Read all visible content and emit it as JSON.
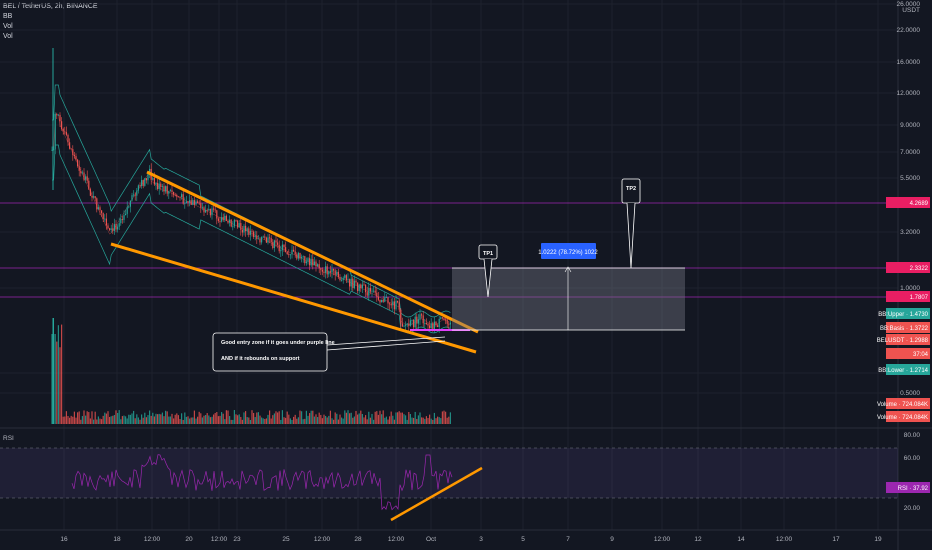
{
  "header": {
    "symbol_line": "BEL / TetherUS, 2h, BINANCE",
    "indicators": [
      "BB",
      "Vol",
      "Vol"
    ]
  },
  "price_axis": {
    "unit": "USDT",
    "ticks": [
      "26.0000",
      "22.0000",
      "16.0000",
      "12.0000",
      "9.0000",
      "7.0000",
      "5.5000",
      "3.2000",
      "1.0000",
      "0.7500",
      "0.5000"
    ]
  },
  "rsi_axis": {
    "ticks": [
      "80.00",
      "60.00",
      "20.00"
    ]
  },
  "time_axis": {
    "ticks": [
      "16",
      "18",
      "12:00",
      "20",
      "12:00",
      "23",
      "25",
      "12:00",
      "28",
      "12:00",
      "Oct",
      "3",
      "5",
      "7",
      "9",
      "12:00",
      "12",
      "14",
      "12:00",
      "17",
      "19"
    ]
  },
  "colors": {
    "background": "#131722",
    "up": "#26a69a",
    "down": "#ef5350",
    "magenta": "#e040fb",
    "purple_line": "#9c27b0",
    "orange": "#ff9800",
    "bb": "#26a69a",
    "box": "#787b86"
  },
  "badges": [
    {
      "text": "4.2689",
      "color": "#e91e63"
    },
    {
      "text": "2.3322",
      "color": "#e91e63"
    },
    {
      "text": "1.7807",
      "color": "#e91e63"
    },
    {
      "text": "BB:Upper · 1.4730",
      "color": "#26a69a"
    },
    {
      "text": "BB:Basis · 1.3722",
      "color": "#ef5350"
    },
    {
      "text": "BELUSDT · 1.2988",
      "color": "#ef5350"
    },
    {
      "text": "37:04",
      "color": "#ef5350"
    },
    {
      "text": "BB:Lower · 1.2714",
      "color": "#26a69a"
    },
    {
      "text": "Volume · 724.084K",
      "color": "#ef5350"
    },
    {
      "text": "Volume · 724.084K",
      "color": "#ef5350"
    },
    {
      "text": "RSI · 37.92",
      "color": "#9c27b0"
    }
  ],
  "annotations": {
    "tp1": "TP1",
    "tp2": "TP2",
    "measure": "1.0222 (78.72%) 1022",
    "note_line1": "Good entry zone if it goes under purple line",
    "note_line2": "AND if it rebounds on support"
  },
  "rsi": {
    "label": "RSI",
    "upper_band": 70,
    "lower_band": 30
  },
  "chart_data": {
    "type": "candlestick",
    "symbol": "BEL / TetherUS",
    "interval": "2h",
    "exchange": "BINANCE",
    "horizontal_levels": [
      4.2689,
      2.3322,
      1.7807
    ],
    "current_price": 1.2988,
    "bollinger": {
      "upper": 1.473,
      "basis": 1.3722,
      "lower": 1.2714
    },
    "volume": "724.084K",
    "rsi": 37.92,
    "target_move": {
      "change": 1.0222,
      "percent": 78.72
    }
  }
}
